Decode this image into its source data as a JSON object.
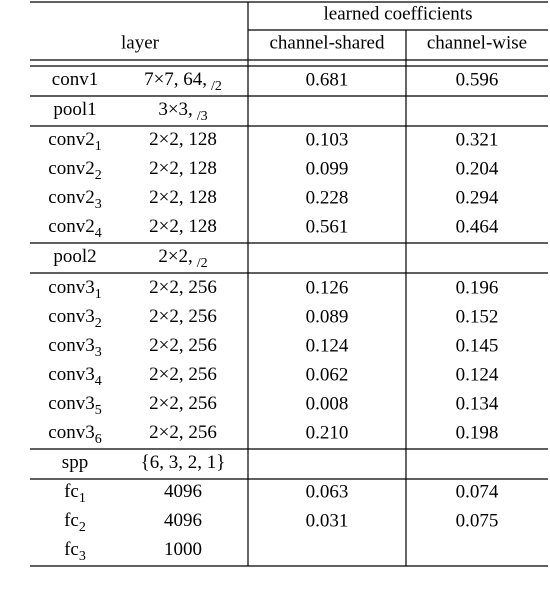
{
  "table": {
    "header": {
      "group": "learned coefficients",
      "layer": "layer",
      "shared": "channel-shared",
      "wise": "channel-wise"
    },
    "rows": [
      {
        "name": "conv1",
        "spec": "7×7, 64,",
        "stride": "/2",
        "shared": "0.681",
        "wise": "0.596"
      },
      {
        "name": "pool1",
        "spec": "3×3,",
        "stride": "/3"
      },
      {
        "name": "conv2",
        "sub": "1",
        "spec": "2×2, 128",
        "shared": "0.103",
        "wise": "0.321"
      },
      {
        "name": "conv2",
        "sub": "2",
        "spec": "2×2, 128",
        "shared": "0.099",
        "wise": "0.204"
      },
      {
        "name": "conv2",
        "sub": "3",
        "spec": "2×2, 128",
        "shared": "0.228",
        "wise": "0.294"
      },
      {
        "name": "conv2",
        "sub": "4",
        "spec": "2×2, 128",
        "shared": "0.561",
        "wise": "0.464"
      },
      {
        "name": "pool2",
        "spec": "2×2,",
        "stride": "/2"
      },
      {
        "name": "conv3",
        "sub": "1",
        "spec": "2×2, 256",
        "shared": "0.126",
        "wise": "0.196"
      },
      {
        "name": "conv3",
        "sub": "2",
        "spec": "2×2, 256",
        "shared": "0.089",
        "wise": "0.152"
      },
      {
        "name": "conv3",
        "sub": "3",
        "spec": "2×2, 256",
        "shared": "0.124",
        "wise": "0.145"
      },
      {
        "name": "conv3",
        "sub": "4",
        "spec": "2×2, 256",
        "shared": "0.062",
        "wise": "0.124"
      },
      {
        "name": "conv3",
        "sub": "5",
        "spec": "2×2, 256",
        "shared": "0.008",
        "wise": "0.134"
      },
      {
        "name": "conv3",
        "sub": "6",
        "spec": "2×2, 256",
        "shared": "0.210",
        "wise": "0.198"
      },
      {
        "name": "spp",
        "spec": "{6, 3, 2, 1}"
      },
      {
        "name": "fc",
        "sub": "1",
        "spec": "4096",
        "shared": "0.063",
        "wise": "0.074"
      },
      {
        "name": "fc",
        "sub": "2",
        "spec": "4096",
        "shared": "0.031",
        "wise": "0.075"
      },
      {
        "name": "fc",
        "sub": "3",
        "spec": "1000"
      }
    ]
  }
}
